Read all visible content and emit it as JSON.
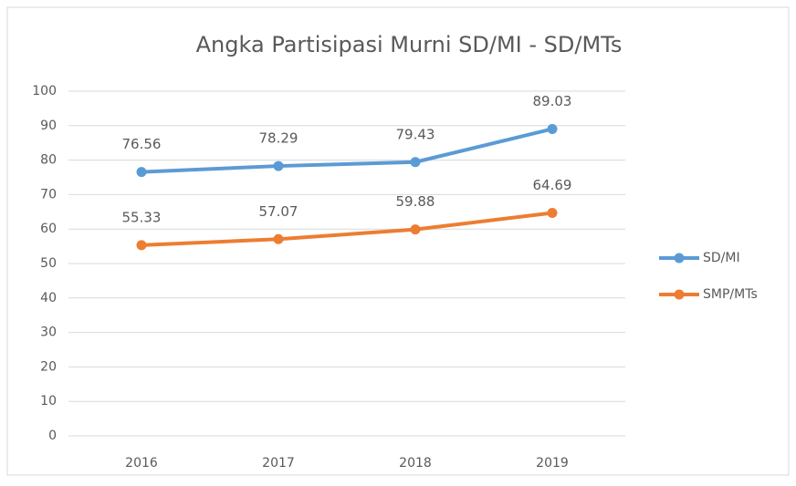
{
  "chart_data": {
    "type": "line",
    "title": "Angka Partisipasi Murni SD/MI - SD/MTs",
    "categories": [
      "2016",
      "2017",
      "2018",
      "2019"
    ],
    "series": [
      {
        "name": "SD/MI",
        "color": "#5b9bd5",
        "values": [
          76.56,
          78.29,
          79.43,
          89.03
        ]
      },
      {
        "name": "SMP/MTs",
        "color": "#ed7d31",
        "values": [
          55.33,
          57.07,
          59.88,
          64.69
        ]
      }
    ],
    "ylim": [
      0,
      100
    ],
    "yticks": [
      0,
      10,
      20,
      30,
      40,
      50,
      60,
      70,
      80,
      90,
      100
    ],
    "grid": true,
    "legend": "right"
  }
}
